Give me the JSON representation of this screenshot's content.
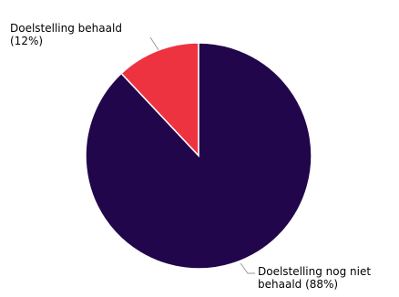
{
  "chart_data": {
    "type": "pie",
    "title": "",
    "slices": [
      {
        "label_line1": "Doelstelling behaald",
        "label_line2": "(12%)",
        "value": 12,
        "color": "#ee3340"
      },
      {
        "label_line1": "Doelstelling nog niet",
        "label_line2": "behaald (88%)",
        "value": 88,
        "color": "#21064b"
      }
    ],
    "start_angle": "12 o'clock",
    "direction": "counter-clockwise for first slice",
    "slice_border_color": "#ffffff",
    "legend": "none"
  }
}
